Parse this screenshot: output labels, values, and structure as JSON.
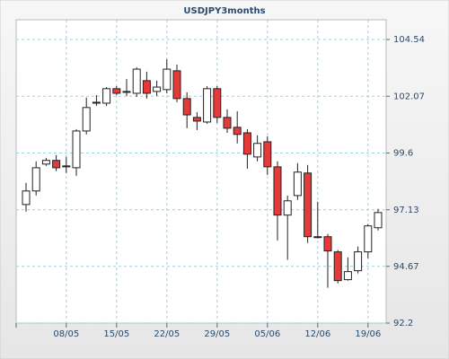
{
  "chart_data": {
    "type": "candlestick",
    "title": "USDJPY3months",
    "categories": [
      null,
      null,
      null,
      null,
      "08/05",
      null,
      null,
      null,
      null,
      "15/05",
      null,
      null,
      null,
      null,
      "22/05",
      null,
      null,
      null,
      null,
      "29/05",
      null,
      null,
      null,
      null,
      "05/06",
      null,
      null,
      null,
      null,
      "12/06",
      null,
      null,
      null,
      null,
      "19/06",
      null
    ],
    "open": [
      97.36,
      97.95,
      99.12,
      99.28,
      99.04,
      98.96,
      100.56,
      101.81,
      101.77,
      102.4,
      102.24,
      102.2,
      102.75,
      102.28,
      102.36,
      103.18,
      101.97,
      101.15,
      100.95,
      102.4,
      101.15,
      100.72,
      100.48,
      99.43,
      100.09,
      99.0,
      96.9,
      97.75,
      98.73,
      95.96,
      95.96,
      95.3,
      94.09,
      94.48,
      95.3,
      96.35
    ],
    "high": [
      98.3,
      99.24,
      99.39,
      99.51,
      99.43,
      100.64,
      102.01,
      102.12,
      102.47,
      102.51,
      102.82,
      103.33,
      103.14,
      102.75,
      103.68,
      103.45,
      102.24,
      101.38,
      102.51,
      102.51,
      101.5,
      101.42,
      100.64,
      100.37,
      100.33,
      99.24,
      97.75,
      99.16,
      99.08,
      97.48,
      96.08,
      95.38,
      95.06,
      95.53,
      96.51,
      97.17
    ],
    "low": [
      97.05,
      97.75,
      99.04,
      98.81,
      98.73,
      98.61,
      100.41,
      101.65,
      101.65,
      102.12,
      102.08,
      102.04,
      101.97,
      102.08,
      102.2,
      101.81,
      100.68,
      100.6,
      100.87,
      100.91,
      100.48,
      100.02,
      98.92,
      99.24,
      98.65,
      95.8,
      94.95,
      97.56,
      95.69,
      95.88,
      93.74,
      93.93,
      94.05,
      94.36,
      95.02,
      96.23
    ],
    "close": [
      97.95,
      98.96,
      99.28,
      98.96,
      99.0,
      100.56,
      101.58,
      101.77,
      102.4,
      102.2,
      102.28,
      103.25,
      102.2,
      102.47,
      103.25,
      101.97,
      101.26,
      100.99,
      102.4,
      101.15,
      100.68,
      100.41,
      99.55,
      100.02,
      99.0,
      96.9,
      97.52,
      98.77,
      95.96,
      95.94,
      95.34,
      94.05,
      94.44,
      95.3,
      96.43,
      97.01
    ],
    "up_color": "#ffffff",
    "down_color": "#e63a3a",
    "ylim": [
      92.2,
      105.4
    ],
    "yticks": [
      92.2,
      94.67,
      97.13,
      99.6,
      102.07,
      104.54
    ],
    "grid": true
  }
}
